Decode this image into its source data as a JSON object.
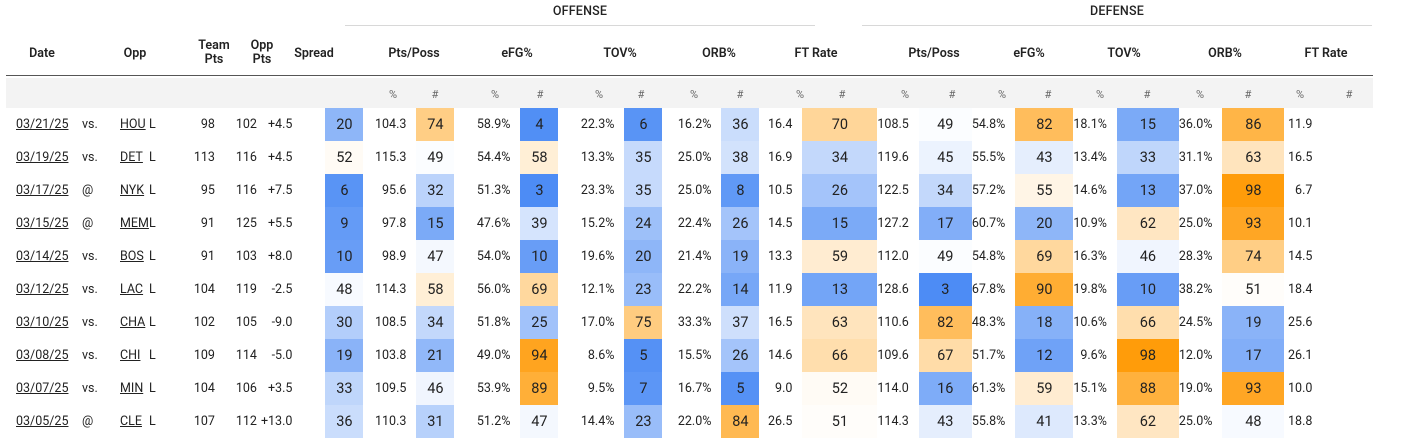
{
  "groups": {
    "offense": "OFFENSE",
    "defense": "DEFENSE"
  },
  "headers": {
    "date": "Date",
    "opp": "Opp",
    "team_pts": "Team Pts",
    "opp_pts": "Opp Pts",
    "spread": "Spread",
    "off_pts_poss": "Pts/Poss",
    "off_efg": "eFG%",
    "off_tov": "TOV%",
    "off_orb": "ORB%",
    "off_ft_rate": "FT Rate",
    "def_pts_poss": "Pts/Poss",
    "def_efg": "eFG%",
    "def_tov": "TOV%",
    "def_orb": "ORB%",
    "def_ft_rate": "FT Rate"
  },
  "subheaders": {
    "pct": "%",
    "num": "#"
  },
  "rows": [
    {
      "date": "03/21/25",
      "site": "vs.",
      "opp": "HOU",
      "result": "L",
      "team_pts": "98",
      "opp_pts": "102",
      "spread": "+4.5",
      "o_pp": [
        "20",
        "104.3"
      ],
      "o_efg": [
        "74",
        "58.9%"
      ],
      "o_tov": [
        "4",
        "22.3%"
      ],
      "o_orb": [
        "6",
        "16.2%"
      ],
      "o_ft": [
        "36",
        "16.4"
      ],
      "d_pp": [
        "70",
        "108.5"
      ],
      "d_efg": [
        "49",
        "54.8%"
      ],
      "d_tov": [
        "82",
        "18.1%"
      ],
      "d_orb": [
        "15",
        "36.0%"
      ],
      "d_ft": [
        "86",
        "11.9"
      ]
    },
    {
      "date": "03/19/25",
      "site": "vs.",
      "opp": "DET",
      "result": "L",
      "team_pts": "113",
      "opp_pts": "116",
      "spread": "+4.5",
      "o_pp": [
        "52",
        "115.3"
      ],
      "o_efg": [
        "49",
        "54.4%"
      ],
      "o_tov": [
        "58",
        "13.3%"
      ],
      "o_orb": [
        "35",
        "25.0%"
      ],
      "o_ft": [
        "38",
        "16.9"
      ],
      "d_pp": [
        "34",
        "119.6"
      ],
      "d_efg": [
        "45",
        "55.5%"
      ],
      "d_tov": [
        "43",
        "13.4%"
      ],
      "d_orb": [
        "33",
        "31.1%"
      ],
      "d_ft": [
        "63",
        "16.5"
      ]
    },
    {
      "date": "03/17/25",
      "site": "@",
      "opp": "NYK",
      "result": "L",
      "team_pts": "95",
      "opp_pts": "116",
      "spread": "+7.5",
      "o_pp": [
        "6",
        "95.6"
      ],
      "o_efg": [
        "32",
        "51.3%"
      ],
      "o_tov": [
        "3",
        "23.3%"
      ],
      "o_orb": [
        "35",
        "25.0%"
      ],
      "o_ft": [
        "8",
        "10.5"
      ],
      "d_pp": [
        "26",
        "122.5"
      ],
      "d_efg": [
        "34",
        "57.2%"
      ],
      "d_tov": [
        "55",
        "14.6%"
      ],
      "d_orb": [
        "13",
        "37.0%"
      ],
      "d_ft": [
        "98",
        "6.7"
      ]
    },
    {
      "date": "03/15/25",
      "site": "@",
      "opp": "MEM",
      "result": "L",
      "team_pts": "91",
      "opp_pts": "125",
      "spread": "+5.5",
      "o_pp": [
        "9",
        "97.8"
      ],
      "o_efg": [
        "15",
        "47.6%"
      ],
      "o_tov": [
        "39",
        "15.2%"
      ],
      "o_orb": [
        "24",
        "22.4%"
      ],
      "o_ft": [
        "26",
        "14.5"
      ],
      "d_pp": [
        "15",
        "127.2"
      ],
      "d_efg": [
        "17",
        "60.7%"
      ],
      "d_tov": [
        "20",
        "10.9%"
      ],
      "d_orb": [
        "62",
        "25.0%"
      ],
      "d_ft": [
        "93",
        "10.1"
      ]
    },
    {
      "date": "03/14/25",
      "site": "vs.",
      "opp": "BOS",
      "result": "L",
      "team_pts": "91",
      "opp_pts": "103",
      "spread": "+8.0",
      "o_pp": [
        "10",
        "98.9"
      ],
      "o_efg": [
        "47",
        "54.0%"
      ],
      "o_tov": [
        "10",
        "19.6%"
      ],
      "o_orb": [
        "20",
        "21.4%"
      ],
      "o_ft": [
        "19",
        "13.3"
      ],
      "d_pp": [
        "59",
        "112.0"
      ],
      "d_efg": [
        "49",
        "54.8%"
      ],
      "d_tov": [
        "69",
        "16.3%"
      ],
      "d_orb": [
        "46",
        "28.3%"
      ],
      "d_ft": [
        "74",
        "14.5"
      ]
    },
    {
      "date": "03/12/25",
      "site": "vs.",
      "opp": "LAC",
      "result": "L",
      "team_pts": "104",
      "opp_pts": "119",
      "spread": "-2.5",
      "o_pp": [
        "48",
        "114.3"
      ],
      "o_efg": [
        "58",
        "56.0%"
      ],
      "o_tov": [
        "69",
        "12.1%"
      ],
      "o_orb": [
        "23",
        "22.2%"
      ],
      "o_ft": [
        "14",
        "11.9"
      ],
      "d_pp": [
        "13",
        "128.6"
      ],
      "d_efg": [
        "3",
        "67.8%"
      ],
      "d_tov": [
        "90",
        "19.8%"
      ],
      "d_orb": [
        "10",
        "38.2%"
      ],
      "d_ft": [
        "51",
        "18.4"
      ]
    },
    {
      "date": "03/10/25",
      "site": "vs.",
      "opp": "CHA",
      "result": "L",
      "team_pts": "102",
      "opp_pts": "105",
      "spread": "-9.0",
      "o_pp": [
        "30",
        "108.5"
      ],
      "o_efg": [
        "34",
        "51.8%"
      ],
      "o_tov": [
        "25",
        "17.0%"
      ],
      "o_orb": [
        "75",
        "33.3%"
      ],
      "o_ft": [
        "37",
        "16.5"
      ],
      "d_pp": [
        "63",
        "110.6"
      ],
      "d_efg": [
        "82",
        "48.3%"
      ],
      "d_tov": [
        "18",
        "10.6%"
      ],
      "d_orb": [
        "66",
        "24.5%"
      ],
      "d_ft": [
        "19",
        "25.6"
      ]
    },
    {
      "date": "03/08/25",
      "site": "vs.",
      "opp": "CHI",
      "result": "L",
      "team_pts": "109",
      "opp_pts": "114",
      "spread": "-5.0",
      "o_pp": [
        "19",
        "103.8"
      ],
      "o_efg": [
        "21",
        "49.0%"
      ],
      "o_tov": [
        "94",
        "8.6%"
      ],
      "o_orb": [
        "5",
        "15.5%"
      ],
      "o_ft": [
        "26",
        "14.6"
      ],
      "d_pp": [
        "66",
        "109.6"
      ],
      "d_efg": [
        "67",
        "51.7%"
      ],
      "d_tov": [
        "12",
        "9.6%"
      ],
      "d_orb": [
        "98",
        "12.0%"
      ],
      "d_ft": [
        "17",
        "26.1"
      ]
    },
    {
      "date": "03/07/25",
      "site": "vs.",
      "opp": "MIN",
      "result": "L",
      "team_pts": "104",
      "opp_pts": "106",
      "spread": "+3.5",
      "o_pp": [
        "33",
        "109.5"
      ],
      "o_efg": [
        "46",
        "53.9%"
      ],
      "o_tov": [
        "89",
        "9.5%"
      ],
      "o_orb": [
        "7",
        "16.7%"
      ],
      "o_ft": [
        "5",
        "9.0"
      ],
      "d_pp": [
        "52",
        "114.0"
      ],
      "d_efg": [
        "16",
        "61.3%"
      ],
      "d_tov": [
        "59",
        "15.1%"
      ],
      "d_orb": [
        "88",
        "19.0%"
      ],
      "d_ft": [
        "93",
        "10.0"
      ]
    },
    {
      "date": "03/05/25",
      "site": "@",
      "opp": "CLE",
      "result": "L",
      "team_pts": "107",
      "opp_pts": "112",
      "spread": "+13.0",
      "o_pp": [
        "36",
        "110.3"
      ],
      "o_efg": [
        "31",
        "51.2%"
      ],
      "o_tov": [
        "47",
        "14.4%"
      ],
      "o_orb": [
        "23",
        "22.0%"
      ],
      "o_ft": [
        "84",
        "26.5"
      ],
      "d_pp": [
        "51",
        "114.3"
      ],
      "d_efg": [
        "43",
        "55.8%"
      ],
      "d_tov": [
        "41",
        "13.3%"
      ],
      "d_orb": [
        "62",
        "25.0%"
      ],
      "d_ft": [
        "48",
        "18.8"
      ]
    }
  ]
}
